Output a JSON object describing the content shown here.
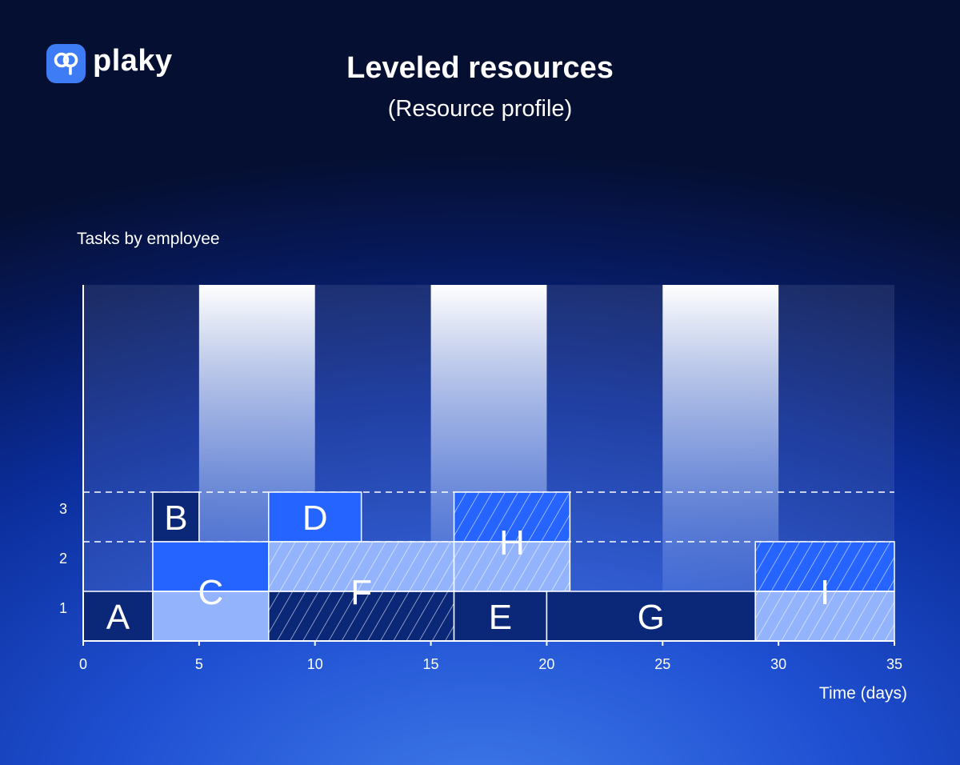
{
  "brand": {
    "name": "plaky",
    "logo_icon": "plaky-logo-icon",
    "accent": "#3d7cf5"
  },
  "header": {
    "title": "Leveled resources",
    "subtitle": "(Resource profile)"
  },
  "chart_data": {
    "type": "bar",
    "layout": "resource-histogram",
    "xlabel": "Time (days)",
    "ylabel": "Tasks by employee",
    "xlim": [
      0,
      35
    ],
    "ylim": [
      0,
      3
    ],
    "xticks": [
      0,
      5,
      10,
      15,
      20,
      25,
      30,
      35
    ],
    "yticks": [
      1,
      2,
      3
    ],
    "dashed_gridlines_y": [
      2,
      3
    ],
    "highlight_bands": [
      [
        5,
        10
      ],
      [
        15,
        20
      ],
      [
        25,
        30
      ]
    ],
    "tasks": [
      {
        "name": "A",
        "segments": [
          {
            "x0": 0,
            "x1": 3,
            "y0": 0,
            "y1": 1,
            "fill": "navy"
          }
        ]
      },
      {
        "name": "B",
        "segments": [
          {
            "x0": 3,
            "x1": 5,
            "y0": 2,
            "y1": 3,
            "fill": "navy"
          }
        ]
      },
      {
        "name": "C",
        "segments": [
          {
            "x0": 3,
            "x1": 8,
            "y0": 0,
            "y1": 1,
            "fill": "light"
          },
          {
            "x0": 3,
            "x1": 8,
            "y0": 1,
            "y1": 2,
            "fill": "blue"
          }
        ]
      },
      {
        "name": "D",
        "segments": [
          {
            "x0": 8,
            "x1": 12,
            "y0": 2,
            "y1": 3,
            "fill": "blue"
          }
        ]
      },
      {
        "name": "F",
        "segments": [
          {
            "x0": 8,
            "x1": 16,
            "y0": 0,
            "y1": 1,
            "fill": "navy-hatched"
          },
          {
            "x0": 8,
            "x1": 16,
            "y0": 1,
            "y1": 2,
            "fill": "light-hatched"
          }
        ]
      },
      {
        "name": "E",
        "segments": [
          {
            "x0": 16,
            "x1": 20,
            "y0": 0,
            "y1": 1,
            "fill": "navy"
          }
        ]
      },
      {
        "name": "H",
        "segments": [
          {
            "x0": 16,
            "x1": 21,
            "y0": 1,
            "y1": 2,
            "fill": "light-hatched"
          },
          {
            "x0": 16,
            "x1": 21,
            "y0": 2,
            "y1": 3,
            "fill": "blue-hatched"
          }
        ]
      },
      {
        "name": "G",
        "segments": [
          {
            "x0": 20,
            "x1": 29,
            "y0": 0,
            "y1": 1,
            "fill": "navy"
          }
        ]
      },
      {
        "name": "I",
        "segments": [
          {
            "x0": 29,
            "x1": 35,
            "y0": 0,
            "y1": 1,
            "fill": "light-hatched"
          },
          {
            "x0": 29,
            "x1": 35,
            "y0": 1,
            "y1": 2,
            "fill": "blue-hatched"
          }
        ]
      }
    ],
    "colors": {
      "navy": "#0a2778",
      "blue": "#2564ff",
      "light": "#93b4fd",
      "outline": "#ffffff"
    }
  }
}
